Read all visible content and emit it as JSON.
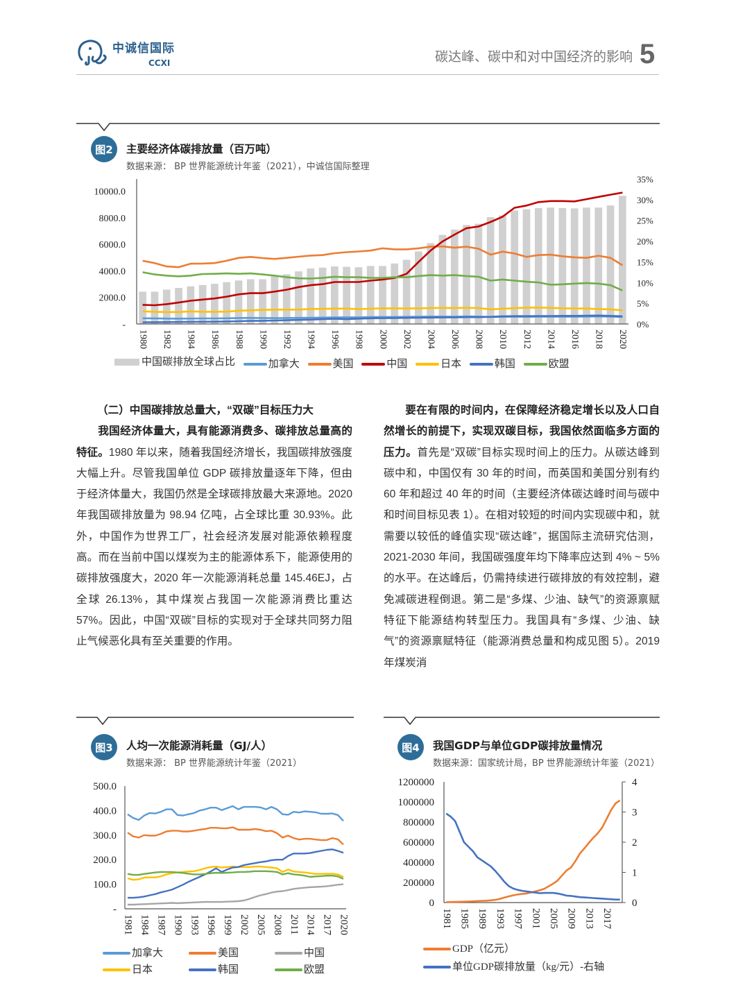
{
  "header": {
    "logo_cn": "中诚信国际",
    "logo_en": "CCXI",
    "title": "碳达峰、碳中和对中国经济的影响",
    "page_number": "5"
  },
  "fig2": {
    "badge": "图2",
    "title": "主要经济体碳排放量（百万吨）",
    "source": "数据来源：  BP 世界能源统计年鉴（2021），中诚信国际整理",
    "chart_data": {
      "type": "bar+line",
      "x": [
        1980,
        1981,
        1982,
        1983,
        1984,
        1985,
        1986,
        1987,
        1988,
        1989,
        1990,
        1991,
        1992,
        1993,
        1994,
        1995,
        1996,
        1997,
        1998,
        1999,
        2000,
        2001,
        2002,
        2003,
        2004,
        2005,
        2006,
        2007,
        2008,
        2009,
        2010,
        2011,
        2012,
        2013,
        2014,
        2015,
        2016,
        2017,
        2018,
        2019,
        2020
      ],
      "x_tick_step": 2,
      "left_axis": {
        "ylim": [
          0,
          10920
        ],
        "ticks": [
          0,
          2000,
          4000,
          6000,
          8000,
          10000
        ],
        "tick_labels": [
          "-",
          "2000.0",
          "4000.0",
          "6000.0",
          "8000.0",
          "10000.0"
        ]
      },
      "right_axis": {
        "ylim": [
          0,
          35
        ],
        "ticks": [
          0,
          5,
          10,
          15,
          20,
          25,
          30,
          35
        ],
        "tick_labels": [
          "0%",
          "5%",
          "10%",
          "15%",
          "20%",
          "25%",
          "30%",
          "35%"
        ]
      },
      "bars": {
        "name": "中国碳排放全球占比",
        "axis": "right",
        "color": "#d0d0d0",
        "values": [
          7.8,
          7.8,
          8.3,
          8.7,
          9.1,
          9.4,
          9.7,
          10.1,
          10.5,
          10.8,
          10.8,
          11.6,
          12.0,
          12.7,
          13.4,
          13.6,
          13.9,
          13.8,
          13.7,
          14.0,
          14.0,
          14.6,
          15.5,
          17.5,
          19.5,
          21.5,
          22.8,
          23.9,
          24.2,
          25.8,
          26.2,
          27.4,
          27.7,
          28.0,
          28.1,
          28.0,
          27.9,
          28.1,
          28.1,
          28.6,
          30.93
        ]
      },
      "series": [
        {
          "name": "加拿大",
          "color": "#5b9bd5",
          "values": [
            430,
            425,
            410,
            400,
            410,
            420,
            420,
            430,
            450,
            460,
            450,
            440,
            450,
            460,
            470,
            480,
            490,
            500,
            500,
            520,
            530,
            530,
            540,
            550,
            560,
            560,
            550,
            570,
            560,
            530,
            540,
            550,
            540,
            550,
            550,
            550,
            550,
            560,
            570,
            560,
            520
          ]
        },
        {
          "name": "美国",
          "color": "#ed7d31",
          "values": [
            4760,
            4590,
            4330,
            4280,
            4540,
            4550,
            4590,
            4760,
            4980,
            5050,
            4965,
            4900,
            4980,
            5070,
            5150,
            5190,
            5330,
            5410,
            5460,
            5530,
            5700,
            5620,
            5620,
            5700,
            5820,
            5840,
            5740,
            5820,
            5670,
            5220,
            5450,
            5310,
            5050,
            5190,
            5220,
            5100,
            5020,
            4980,
            5140,
            4980,
            4420
          ]
        },
        {
          "name": "中国",
          "color": "#c00000",
          "values": [
            1443,
            1410,
            1495,
            1615,
            1750,
            1840,
            1925,
            2060,
            2230,
            2320,
            2320,
            2440,
            2580,
            2780,
            2920,
            3000,
            3160,
            3160,
            3160,
            3265,
            3350,
            3470,
            3780,
            4670,
            5530,
            6220,
            6735,
            7215,
            7340,
            7680,
            8080,
            8750,
            8920,
            9180,
            9260,
            9260,
            9230,
            9400,
            9570,
            9740,
            9894
          ]
        },
        {
          "name": "日本",
          "color": "#ffc000",
          "values": [
            950,
            920,
            900,
            900,
            950,
            920,
            920,
            930,
            1000,
            1030,
            1060,
            1080,
            1080,
            1080,
            1130,
            1140,
            1160,
            1160,
            1120,
            1150,
            1180,
            1170,
            1170,
            1180,
            1200,
            1210,
            1200,
            1220,
            1200,
            1100,
            1150,
            1190,
            1230,
            1240,
            1210,
            1180,
            1170,
            1160,
            1130,
            1100,
            1030
          ]
        },
        {
          "name": "韩国",
          "color": "#4472c4",
          "values": [
            130,
            135,
            140,
            150,
            160,
            165,
            175,
            190,
            210,
            230,
            240,
            260,
            280,
            310,
            330,
            360,
            390,
            360,
            400,
            430,
            440,
            450,
            460,
            470,
            480,
            490,
            500,
            510,
            510,
            540,
            580,
            590,
            590,
            600,
            600,
            610,
            610,
            620,
            640,
            610,
            580
          ]
        },
        {
          "name": "欧盟",
          "color": "#70ad47",
          "values": [
            3900,
            3730,
            3640,
            3590,
            3640,
            3760,
            3780,
            3810,
            3780,
            3810,
            3730,
            3640,
            3520,
            3440,
            3420,
            3470,
            3560,
            3520,
            3520,
            3470,
            3470,
            3520,
            3520,
            3610,
            3680,
            3640,
            3680,
            3610,
            3560,
            3265,
            3350,
            3265,
            3180,
            3130,
            2955,
            2990,
            3040,
            3075,
            3040,
            2920,
            2525
          ]
        }
      ],
      "legend_placement": "bottom",
      "grid": false
    }
  },
  "section": {
    "heading": "（二）中国碳排放总量大，“双碳”目标压力大",
    "left_bold": "我国经济体量大，具有能源消费多、碳排放总量高的特征。",
    "left_text": "1980 年以来，随着我国经济增长，我国碳排放强度大幅上升。尽管我国单位 GDP 碳排放量逐年下降，但由于经济体量大，我国仍然是全球碳排放最大来源地。2020 年我国碳排放量为 98.94 亿吨，占全球比重 30.93%。此外，中国作为世界工厂，社会经济发展对能源依赖程度高。而在当前中国以煤炭为主的能源体系下，能源使用的碳排放强度大，2020 年一次能源消耗总量 145.46EJ，占全球 26.13%，其中煤炭占我国一次能源消费比重达 57%。因此，中国“双碳”目标的实现对于全球共同努力阻止气候恶化具有至关重要的作用。",
    "right_bold": "要在有限的时间内，在保障经济稳定增长以及人口自然增长的前提下，实现双碳目标，我国依然面临多方面的压力。",
    "right_text": "首先是“双碳”目标实现时间上的压力。从碳达峰到碳中和，中国仅有 30 年的时间，而英国和美国分别有约 60 年和超过 40 年的时间（主要经济体碳达峰时间与碳中和时间目标见表 1）。在相对较短的时间内实现碳中和，就需要以较低的峰值实现“碳达峰”，据国际主流研究估测，2021-2030 年间，我国碳强度年均下降率应达到 4% ~ 5% 的水平。在达峰后，仍需持续进行碳排放的有效控制，避免减碳进程倒退。第二是“多煤、少油、缺气”的资源禀赋特征下能源结构转型压力。我国具有“多煤、少油、缺气”的资源禀赋特征（能源消费总量和构成见图 5）。2019 年煤炭消"
  },
  "fig3": {
    "badge": "图3",
    "title": "人均一次能源消耗量（GJ/人）",
    "source": "数据来源：  BP 世界能源统计年鉴（2021）",
    "chart_data": {
      "type": "line",
      "x": [
        1981,
        1982,
        1983,
        1984,
        1985,
        1986,
        1987,
        1988,
        1989,
        1990,
        1991,
        1992,
        1993,
        1994,
        1995,
        1996,
        1997,
        1998,
        1999,
        2000,
        2001,
        2002,
        2003,
        2004,
        2005,
        2006,
        2007,
        2008,
        2009,
        2010,
        2011,
        2012,
        2013,
        2014,
        2015,
        2016,
        2017,
        2018,
        2019,
        2020
      ],
      "x_tick_step": 3,
      "ylim": [
        0,
        500
      ],
      "ticks": [
        0,
        100,
        200,
        300,
        400,
        500
      ],
      "tick_labels": [
        "-",
        "100.0",
        "200.0",
        "300.0",
        "400.0",
        "500.0"
      ],
      "series": [
        {
          "name": "加拿大",
          "color": "#5b9bd5",
          "values": [
            385,
            370,
            362,
            380,
            390,
            388,
            395,
            405,
            405,
            382,
            380,
            385,
            390,
            400,
            405,
            412,
            412,
            402,
            410,
            418,
            405,
            415,
            415,
            415,
            413,
            405,
            415,
            405,
            385,
            383,
            395,
            392,
            397,
            395,
            393,
            387,
            387,
            388,
            382,
            358
          ]
        },
        {
          "name": "美国",
          "color": "#ed7d31",
          "values": [
            310,
            295,
            290,
            300,
            298,
            298,
            305,
            315,
            318,
            318,
            315,
            315,
            318,
            322,
            325,
            330,
            330,
            328,
            328,
            332,
            322,
            322,
            322,
            325,
            322,
            316,
            318,
            308,
            290,
            298,
            288,
            282,
            285,
            285,
            282,
            280,
            280,
            288,
            283,
            262
          ]
        },
        {
          "name": "中国",
          "color": "#a5a5a5",
          "values": [
            17,
            17,
            18,
            19,
            20,
            21,
            22,
            23,
            24,
            23,
            24,
            25,
            26,
            27,
            28,
            28,
            28,
            28,
            29,
            30,
            31,
            34,
            40,
            48,
            55,
            60,
            66,
            70,
            72,
            76,
            81,
            84,
            86,
            88,
            89,
            90,
            92,
            95,
            98,
            100
          ]
        },
        {
          "name": "日本",
          "color": "#ffc000",
          "values": [
            124,
            118,
            120,
            127,
            128,
            128,
            132,
            140,
            145,
            148,
            150,
            152,
            153,
            158,
            165,
            170,
            172,
            168,
            170,
            172,
            170,
            170,
            170,
            172,
            172,
            170,
            168,
            165,
            150,
            160,
            152,
            150,
            148,
            145,
            142,
            142,
            143,
            143,
            140,
            130
          ]
        },
        {
          "name": "韩国",
          "color": "#4472c4",
          "values": [
            45,
            45,
            47,
            50,
            55,
            60,
            67,
            72,
            78,
            88,
            98,
            110,
            120,
            130,
            140,
            152,
            165,
            150,
            160,
            168,
            170,
            178,
            182,
            186,
            190,
            193,
            198,
            200,
            200,
            215,
            225,
            225,
            225,
            227,
            232,
            236,
            240,
            242,
            236,
            228
          ]
        },
        {
          "name": "欧盟",
          "color": "#70ad47",
          "values": [
            142,
            138,
            138,
            142,
            145,
            148,
            150,
            150,
            150,
            148,
            146,
            143,
            140,
            140,
            142,
            145,
            147,
            146,
            147,
            148,
            150,
            150,
            151,
            153,
            153,
            153,
            152,
            150,
            140,
            145,
            140,
            138,
            135,
            130,
            132,
            133,
            135,
            135,
            132,
            122
          ]
        }
      ],
      "legend_placement": "bottom",
      "grid": false
    }
  },
  "fig4": {
    "badge": "图4",
    "title": "我国GDP与单位GDP碳排放量情况",
    "source": "数据来源：国家统计局，BP 世界能源统计年鉴（2021）",
    "chart_data": {
      "type": "line",
      "x": [
        1981,
        1982,
        1983,
        1984,
        1985,
        1986,
        1987,
        1988,
        1989,
        1990,
        1991,
        1992,
        1993,
        1994,
        1995,
        1996,
        1997,
        1998,
        1999,
        2000,
        2001,
        2002,
        2003,
        2004,
        2005,
        2006,
        2007,
        2008,
        2009,
        2010,
        2011,
        2012,
        2013,
        2014,
        2015,
        2016,
        2017,
        2018,
        2019,
        2020
      ],
      "x_tick_step": 4,
      "left_axis": {
        "ylim": [
          0,
          1200000
        ],
        "ticks": [
          0,
          200000,
          400000,
          600000,
          800000,
          1000000,
          1200000
        ],
        "tick_labels": [
          "0",
          "200000",
          "400000",
          "600000",
          "800000",
          "1000000",
          "1200000"
        ]
      },
      "right_axis": {
        "ylim": [
          0,
          4
        ],
        "ticks": [
          0,
          1,
          2,
          3,
          4
        ],
        "tick_labels": [
          "0",
          "1",
          "2",
          "3",
          "4"
        ]
      },
      "series": [
        {
          "name": "GDP（亿元）",
          "axis": "left",
          "color": "#ed7d31",
          "values": [
            4936,
            5373,
            6021,
            7279,
            9099,
            10376,
            12175,
            15180,
            17180,
            18873,
            22006,
            27195,
            35673,
            48638,
            61340,
            71814,
            79715,
            85196,
            90564,
            100280,
            110863,
            121717,
            137422,
            161840,
            187319,
            219439,
            270092,
            319245,
            348518,
            412119,
            487940,
            538580,
            592963,
            643563,
            688858,
            746395,
            832036,
            919281,
            986515,
            1015986
          ]
        },
        {
          "name": "单位GDP碳排放量（kg/元）-右轴",
          "axis": "right",
          "color": "#4472c4",
          "values": [
            2.95,
            2.85,
            2.7,
            2.35,
            2.0,
            1.85,
            1.7,
            1.5,
            1.4,
            1.3,
            1.2,
            1.05,
            0.88,
            0.7,
            0.55,
            0.47,
            0.42,
            0.39,
            0.37,
            0.35,
            0.33,
            0.31,
            0.32,
            0.32,
            0.32,
            0.3,
            0.27,
            0.23,
            0.22,
            0.2,
            0.18,
            0.17,
            0.16,
            0.15,
            0.14,
            0.13,
            0.12,
            0.11,
            0.1,
            0.1
          ]
        }
      ],
      "legend_placement": "bottom",
      "grid": false
    }
  }
}
